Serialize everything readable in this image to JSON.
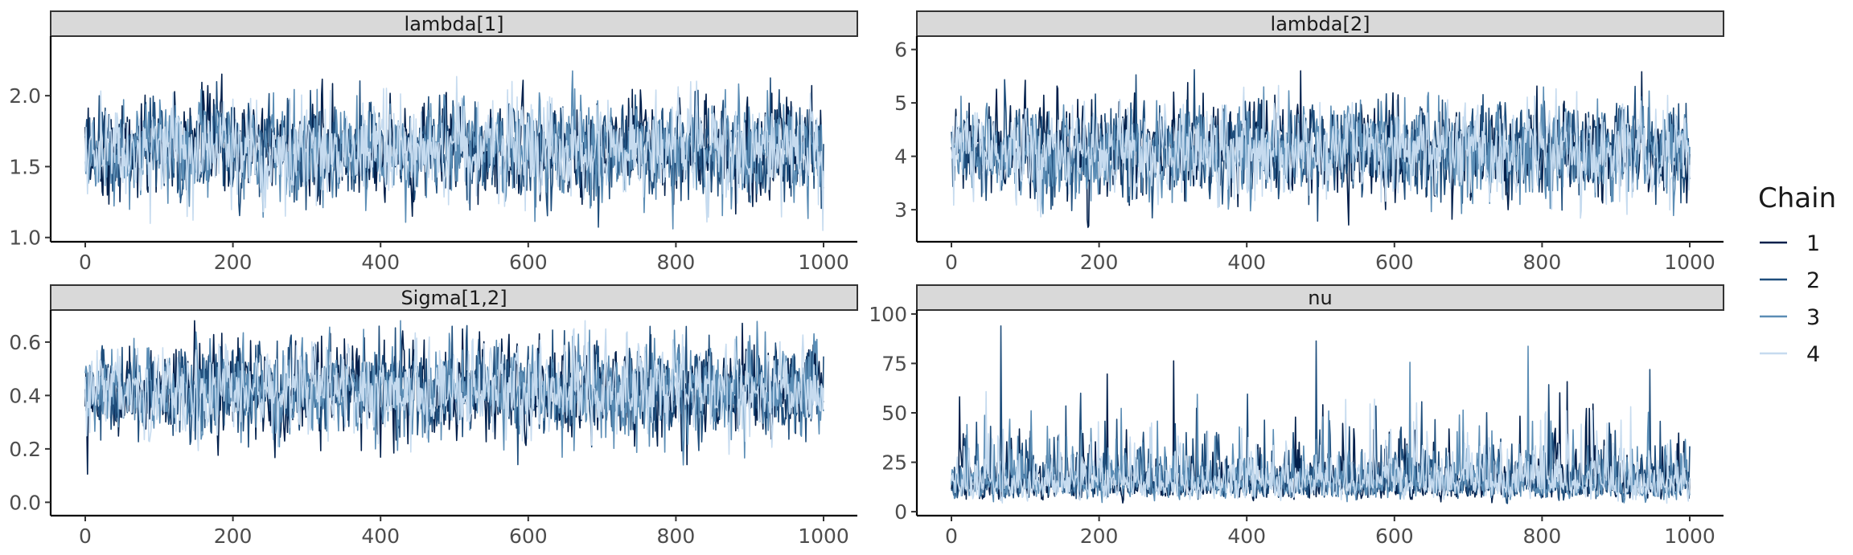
{
  "chart_data": {
    "type": "line",
    "description_free": true,
    "x_ticks": [
      0,
      200,
      400,
      600,
      800,
      1000
    ],
    "iterations": 1000,
    "legend": {
      "title": "Chain",
      "position": "right",
      "entries": [
        {
          "label": "1",
          "color": "#011f4b"
        },
        {
          "label": "2",
          "color": "#1f4e7c"
        },
        {
          "label": "3",
          "color": "#5b8db5"
        },
        {
          "label": "4",
          "color": "#c6dbef"
        }
      ]
    },
    "panels": [
      {
        "title": "lambda[1]",
        "xlim": [
          0,
          1000
        ],
        "ylim": [
          0.97,
          2.42
        ],
        "yticks": [
          "1.0",
          "1.5",
          "2.0"
        ],
        "ytick_values": [
          1.0,
          1.5,
          2.0
        ],
        "center": 1.62,
        "spread": 0.22,
        "min": 1.05,
        "max": 2.38,
        "skew": 0
      },
      {
        "title": "lambda[2]",
        "xlim": [
          0,
          1000
        ],
        "ylim": [
          2.4,
          6.25
        ],
        "yticks": [
          "3",
          "4",
          "5",
          "6"
        ],
        "ytick_values": [
          3,
          4,
          5,
          6
        ],
        "center": 4.1,
        "spread": 0.55,
        "min": 2.55,
        "max": 6.15,
        "skew": 0
      },
      {
        "title": "Sigma[1,2]",
        "xlim": [
          0,
          1000
        ],
        "ylim": [
          -0.05,
          0.72
        ],
        "yticks": [
          "0.0",
          "0.2",
          "0.4",
          "0.6"
        ],
        "ytick_values": [
          0.0,
          0.2,
          0.4,
          0.6
        ],
        "center": 0.42,
        "spread": 0.11,
        "min": -0.03,
        "max": 0.68,
        "skew": 0
      },
      {
        "title": "nu",
        "xlim": [
          0,
          1000
        ],
        "ylim": [
          -2,
          102
        ],
        "yticks": [
          "0",
          "25",
          "50",
          "75",
          "100"
        ],
        "ytick_values": [
          0,
          25,
          50,
          75,
          100
        ],
        "center": 14,
        "spread": 9,
        "min": 2,
        "max": 99,
        "skew": 1
      }
    ]
  }
}
